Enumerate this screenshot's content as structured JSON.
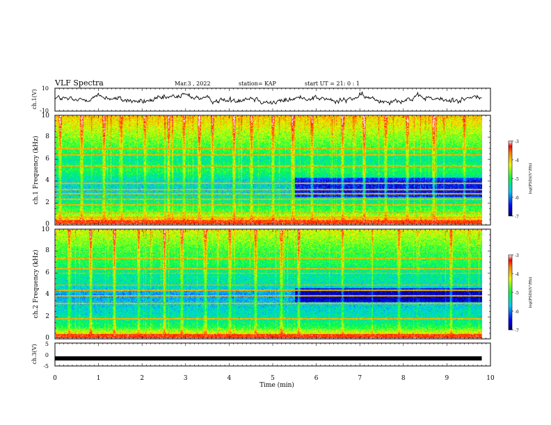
{
  "header": {
    "title": "VLF Spectra",
    "date": "Mar.3 , 2022",
    "station": "station= KAP",
    "start": "start UT = 21: 0 : 1"
  },
  "chart_data": [
    {
      "type": "line",
      "panel": "ch1-waveform",
      "ylabel": "ch.1(V)",
      "ylim": [
        -10,
        10
      ],
      "yticks": [
        "10",
        "-10"
      ],
      "x": [
        0.0,
        0.5,
        1.0,
        1.5,
        2.0,
        2.5,
        3.0,
        3.5,
        4.0,
        4.5,
        5.0,
        5.5,
        6.0,
        6.5,
        7.0,
        7.5,
        8.0,
        8.5,
        9.0,
        9.5,
        9.8
      ],
      "values": [
        2,
        -1,
        3,
        0,
        -2,
        1,
        4,
        0,
        -1,
        2,
        -3,
        1,
        2,
        -2,
        3,
        -1,
        0,
        2,
        -1,
        1,
        3
      ],
      "color": "#000000"
    },
    {
      "type": "heatmap",
      "panel": "ch1-spectrogram",
      "ylabel": "ch.1 Frequency (kHz)",
      "ylim": [
        0,
        10
      ],
      "yticks": [
        "0",
        "2",
        "4",
        "6",
        "8",
        "10"
      ],
      "xlim": [
        0,
        10
      ],
      "data_end_min": 9.8,
      "colorbar": {
        "label": "log(PSD)(V²/Hz)",
        "ticks": [
          "-3",
          "-4",
          "-5",
          "-6",
          "-7"
        ],
        "range": [
          -7,
          -3
        ]
      },
      "features": {
        "bands_khz": [
          0.2,
          0.6,
          1.1,
          1.75,
          2.3,
          2.8,
          3.2,
          3.75,
          5.4,
          6.4,
          7.0
        ],
        "burst_times_min": [
          0.1,
          0.6,
          1.1,
          1.5,
          2.05,
          2.6,
          2.95,
          3.3,
          3.6,
          4.1,
          4.5,
          5.0,
          5.45,
          5.9,
          6.6,
          7.1,
          7.6,
          8.1,
          8.7,
          9.4
        ],
        "quiet_region": {
          "t_start_min": 5.5,
          "f_low_khz": 2.5,
          "f_high_khz": 4.3
        },
        "dominant_level_by_freq_khz": [
          {
            "f": 0.0,
            "level": -3.5
          },
          {
            "f": 1.0,
            "level": -4.7
          },
          {
            "f": 2.0,
            "level": -5.2
          },
          {
            "f": 3.0,
            "level": -5.6
          },
          {
            "f": 4.0,
            "level": -5.5
          },
          {
            "f": 5.0,
            "level": -5.0
          },
          {
            "f": 6.0,
            "level": -5.3
          },
          {
            "f": 7.0,
            "level": -4.9
          },
          {
            "f": 8.0,
            "level": -4.6
          },
          {
            "f": 9.0,
            "level": -4.3
          },
          {
            "f": 10.0,
            "level": -4.0
          }
        ]
      }
    },
    {
      "type": "heatmap",
      "panel": "ch2-spectrogram",
      "ylabel": "ch.2 Frequency (kHz)",
      "ylim": [
        0,
        10
      ],
      "yticks": [
        "0",
        "2",
        "4",
        "6",
        "8",
        "10"
      ],
      "xlim": [
        0,
        10
      ],
      "data_end_min": 9.8,
      "colorbar": {
        "label": "log(PSD)(V²/Hz)",
        "ticks": [
          "-3",
          "-4",
          "-5",
          "-6",
          "-7"
        ],
        "range": [
          -7,
          -3
        ]
      },
      "features": {
        "bands_khz": [
          0.2,
          1.75,
          3.2,
          3.9,
          4.4,
          4.9,
          6.0,
          6.4,
          7.4,
          8.0
        ],
        "burst_times_min": [
          0.3,
          0.8,
          1.35,
          1.9,
          2.5,
          2.9,
          3.45,
          4.0,
          4.6,
          5.2,
          5.6,
          6.6,
          7.9,
          9.1
        ],
        "quiet_region": {
          "t_start_min": 5.5,
          "f_low_khz": 3.3,
          "f_high_khz": 4.6
        },
        "dominant_level_by_freq_khz": [
          {
            "f": 0.0,
            "level": -3.6
          },
          {
            "f": 1.0,
            "level": -5.0
          },
          {
            "f": 2.0,
            "level": -5.4
          },
          {
            "f": 3.0,
            "level": -5.6
          },
          {
            "f": 4.0,
            "level": -5.9
          },
          {
            "f": 5.0,
            "level": -5.4
          },
          {
            "f": 6.0,
            "level": -5.3
          },
          {
            "f": 7.0,
            "level": -5.0
          },
          {
            "f": 8.0,
            "level": -4.9
          },
          {
            "f": 9.0,
            "level": -4.6
          },
          {
            "f": 10.0,
            "level": -4.3
          }
        ]
      }
    },
    {
      "type": "line",
      "panel": "ch3-signal",
      "ylabel": "ch.3(V)",
      "ylim": [
        -5,
        5
      ],
      "yticks": [
        "5",
        "0",
        "-5"
      ],
      "x": [
        0.0,
        9.8
      ],
      "values": [
        -1.7,
        -1.7
      ],
      "color": "#000000"
    }
  ],
  "xaxis": {
    "label": "Time (min)",
    "ticks": [
      "0",
      "1",
      "2",
      "3",
      "4",
      "5",
      "6",
      "7",
      "8",
      "9",
      "10"
    ],
    "xlim": [
      0,
      10
    ]
  }
}
